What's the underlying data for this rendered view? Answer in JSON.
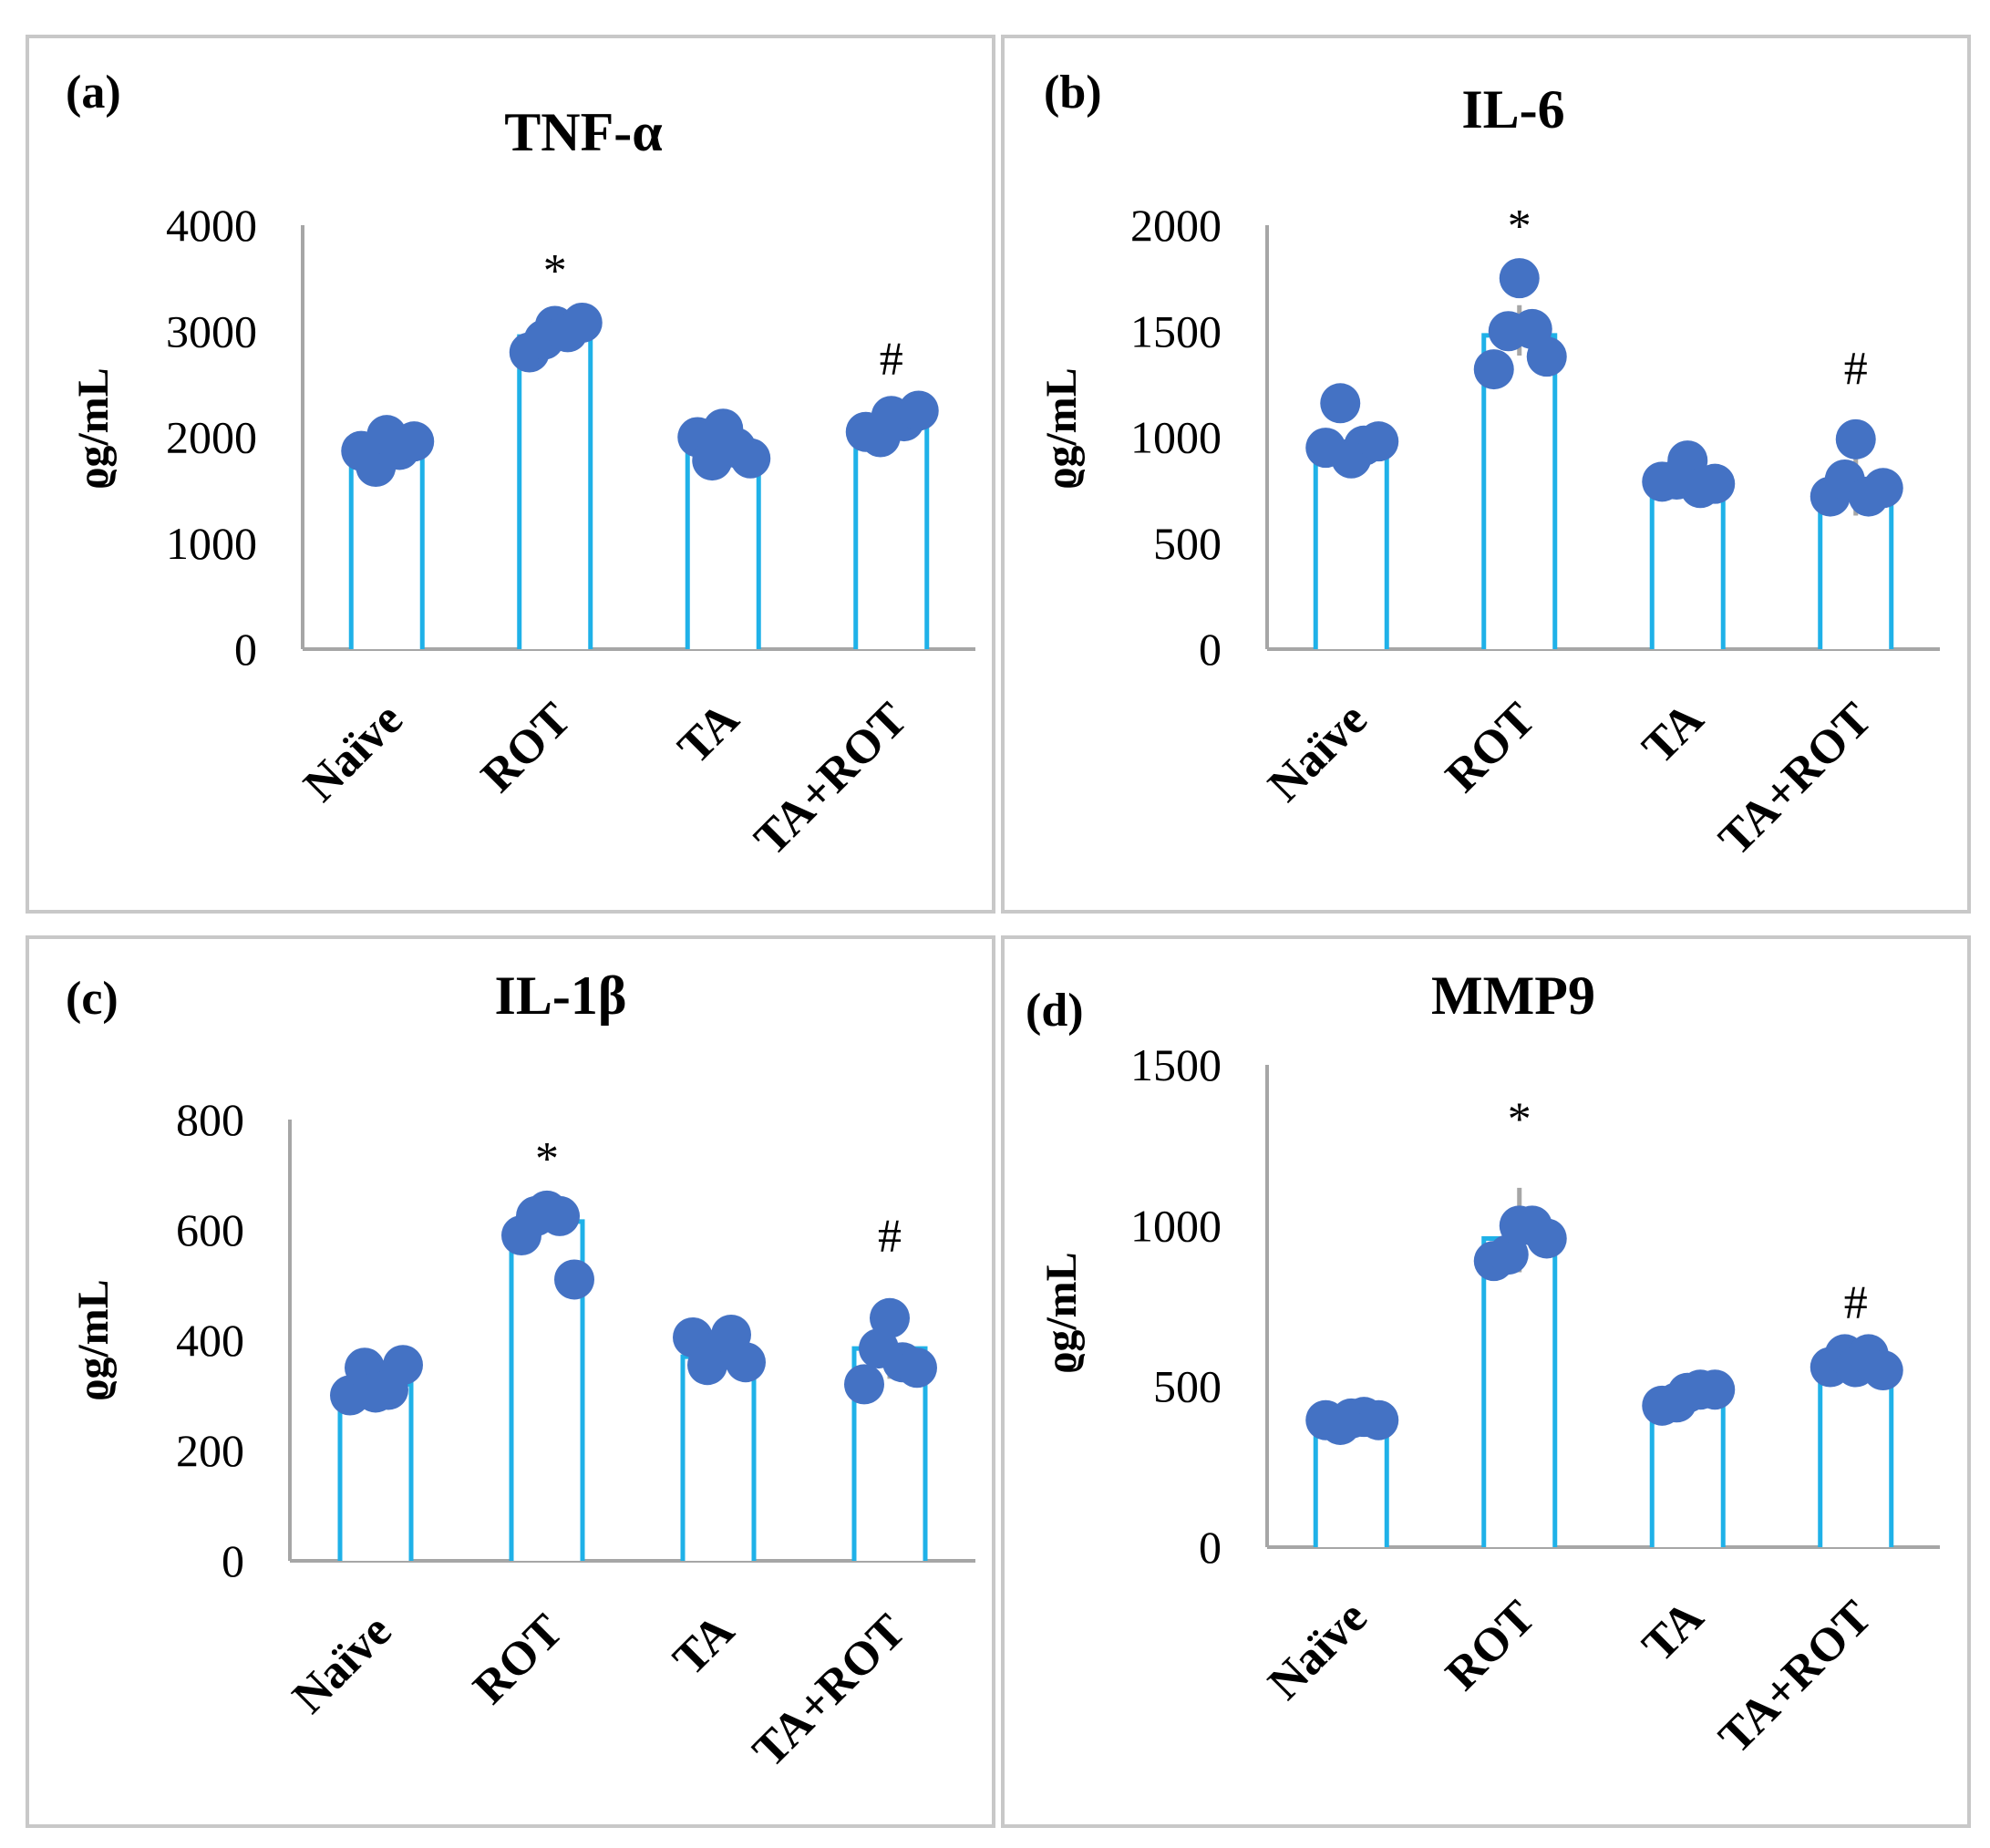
{
  "colors": {
    "bar_outline": "#1fb1e8",
    "point": "#4472c4",
    "error_bar": "#a6a6a6",
    "axis": "#a6a6a6",
    "panel_border": "#c8c8c8"
  },
  "chart_data": [
    {
      "type": "bar",
      "panel_letter": "(a)",
      "title": "TNF-α",
      "xlabel": "",
      "ylabel": "ϱg/mL",
      "ylim": [
        0,
        4000
      ],
      "yticks": [
        0,
        1000,
        2000,
        3000,
        4000
      ],
      "categories": [
        "Naïve",
        "ROT",
        "TA",
        "TA+ROT"
      ],
      "values": [
        1850,
        2950,
        1900,
        2100
      ],
      "error": [
        null,
        null,
        null,
        null
      ],
      "points": [
        [
          1870,
          1720,
          2020,
          1880,
          1960
        ],
        [
          2800,
          2920,
          3050,
          2990,
          3080
        ],
        [
          2000,
          1780,
          2080,
          1900,
          1800
        ],
        [
          2050,
          2000,
          2200,
          2150,
          2250
        ]
      ],
      "annotations": [
        "",
        "*",
        "",
        "#"
      ]
    },
    {
      "type": "bar",
      "panel_letter": "(b)",
      "title": "IL-6",
      "xlabel": "",
      "ylabel": "ϱg/mL",
      "ylim": [
        0,
        2000
      ],
      "yticks": [
        0,
        500,
        1000,
        1500,
        2000
      ],
      "categories": [
        "Naïve",
        "ROT",
        "TA",
        "TA+ROT"
      ],
      "values": [
        920,
        1480,
        780,
        780
      ],
      "error": [
        null,
        190,
        null,
        300
      ],
      "points": [
        [
          950,
          1160,
          900,
          960,
          980
        ],
        [
          1320,
          1500,
          1750,
          1510,
          1380
        ],
        [
          790,
          800,
          890,
          760,
          780
        ],
        [
          720,
          800,
          990,
          720,
          760
        ]
      ],
      "annotations": [
        "",
        "*",
        "",
        "#"
      ]
    },
    {
      "type": "bar",
      "panel_letter": "(c)",
      "title": "IL-1β",
      "xlabel": "",
      "ylabel": "ϱg/mL",
      "ylim": [
        0,
        800
      ],
      "yticks": [
        0,
        200,
        400,
        600,
        800
      ],
      "categories": [
        "Naïve",
        "ROT",
        "TA",
        "TA+ROT"
      ],
      "values": [
        320,
        615,
        370,
        385
      ],
      "error": [
        null,
        null,
        null,
        110
      ],
      "points": [
        [
          300,
          350,
          305,
          310,
          355
        ],
        [
          590,
          625,
          635,
          625,
          510
        ],
        [
          405,
          355,
          380,
          410,
          360
        ],
        [
          320,
          385,
          440,
          360,
          350
        ]
      ],
      "annotations": [
        "",
        "*",
        "",
        "#"
      ]
    },
    {
      "type": "bar",
      "panel_letter": "(d)",
      "title": "MMP9",
      "xlabel": "",
      "ylabel": "ϱg/mL",
      "ylim": [
        0,
        1500
      ],
      "yticks": [
        0,
        500,
        1000,
        1500
      ],
      "categories": [
        "Naïve",
        "ROT",
        "TA",
        "TA+ROT"
      ],
      "values": [
        390,
        960,
        470,
        560
      ],
      "error": [
        null,
        210,
        null,
        null
      ],
      "points": [
        [
          395,
          380,
          400,
          405,
          395
        ],
        [
          890,
          910,
          1000,
          1000,
          960
        ],
        [
          440,
          450,
          480,
          490,
          490
        ],
        [
          560,
          600,
          560,
          600,
          550
        ]
      ],
      "annotations": [
        "",
        "*",
        "",
        "#"
      ]
    }
  ]
}
